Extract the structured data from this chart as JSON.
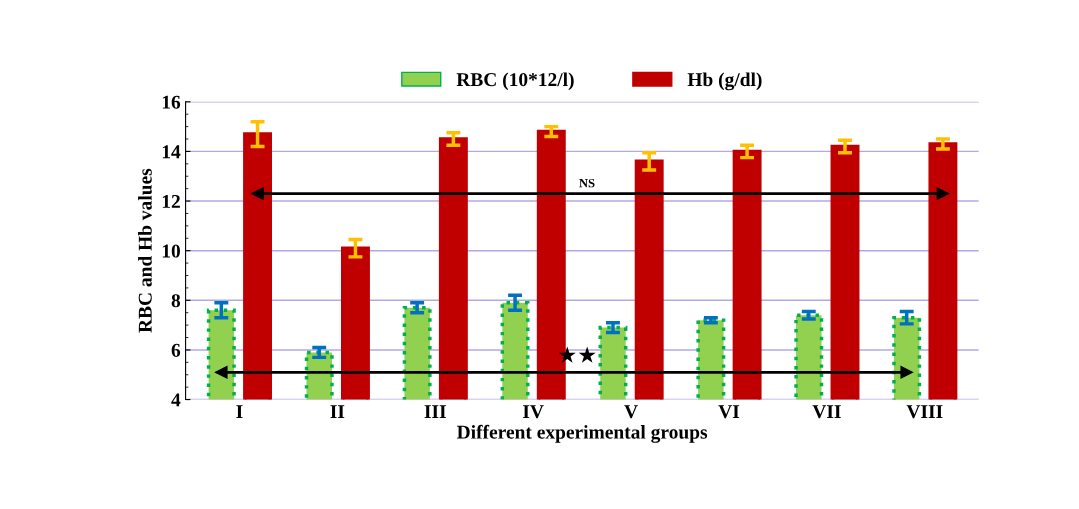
{
  "chart_data": {
    "type": "bar",
    "xlabel": "Different experimental groups",
    "ylabel": "RBC and Hb values",
    "categories": [
      "I",
      "II",
      "III",
      "IV",
      "V",
      "VI",
      "VII",
      "VIII"
    ],
    "series": [
      {
        "name": "RBC (10*12/l)",
        "color": "#92d050",
        "values": [
          7.6,
          5.9,
          7.7,
          7.9,
          6.9,
          7.2,
          7.4,
          7.3
        ],
        "errors": [
          0.3,
          0.2,
          0.2,
          0.3,
          0.2,
          0.1,
          0.15,
          0.25
        ]
      },
      {
        "name": "Hb (g/dl)",
        "color": "#c00000",
        "values": [
          14.7,
          10.1,
          14.5,
          14.8,
          13.6,
          14.0,
          14.2,
          14.3
        ],
        "errors": [
          0.5,
          0.35,
          0.25,
          0.2,
          0.35,
          0.25,
          0.25,
          0.2
        ]
      }
    ],
    "ylim": [
      4,
      16
    ],
    "yticks": [
      4,
      6,
      8,
      10,
      12,
      14,
      16
    ],
    "grid": "y",
    "legend": "top",
    "ref_lines": [
      {
        "axis": "y",
        "value": 12.3,
        "label": "NS",
        "color": "#000000"
      },
      {
        "axis": "y",
        "value": 5.1,
        "label": "★★",
        "color": "#000000"
      }
    ]
  }
}
